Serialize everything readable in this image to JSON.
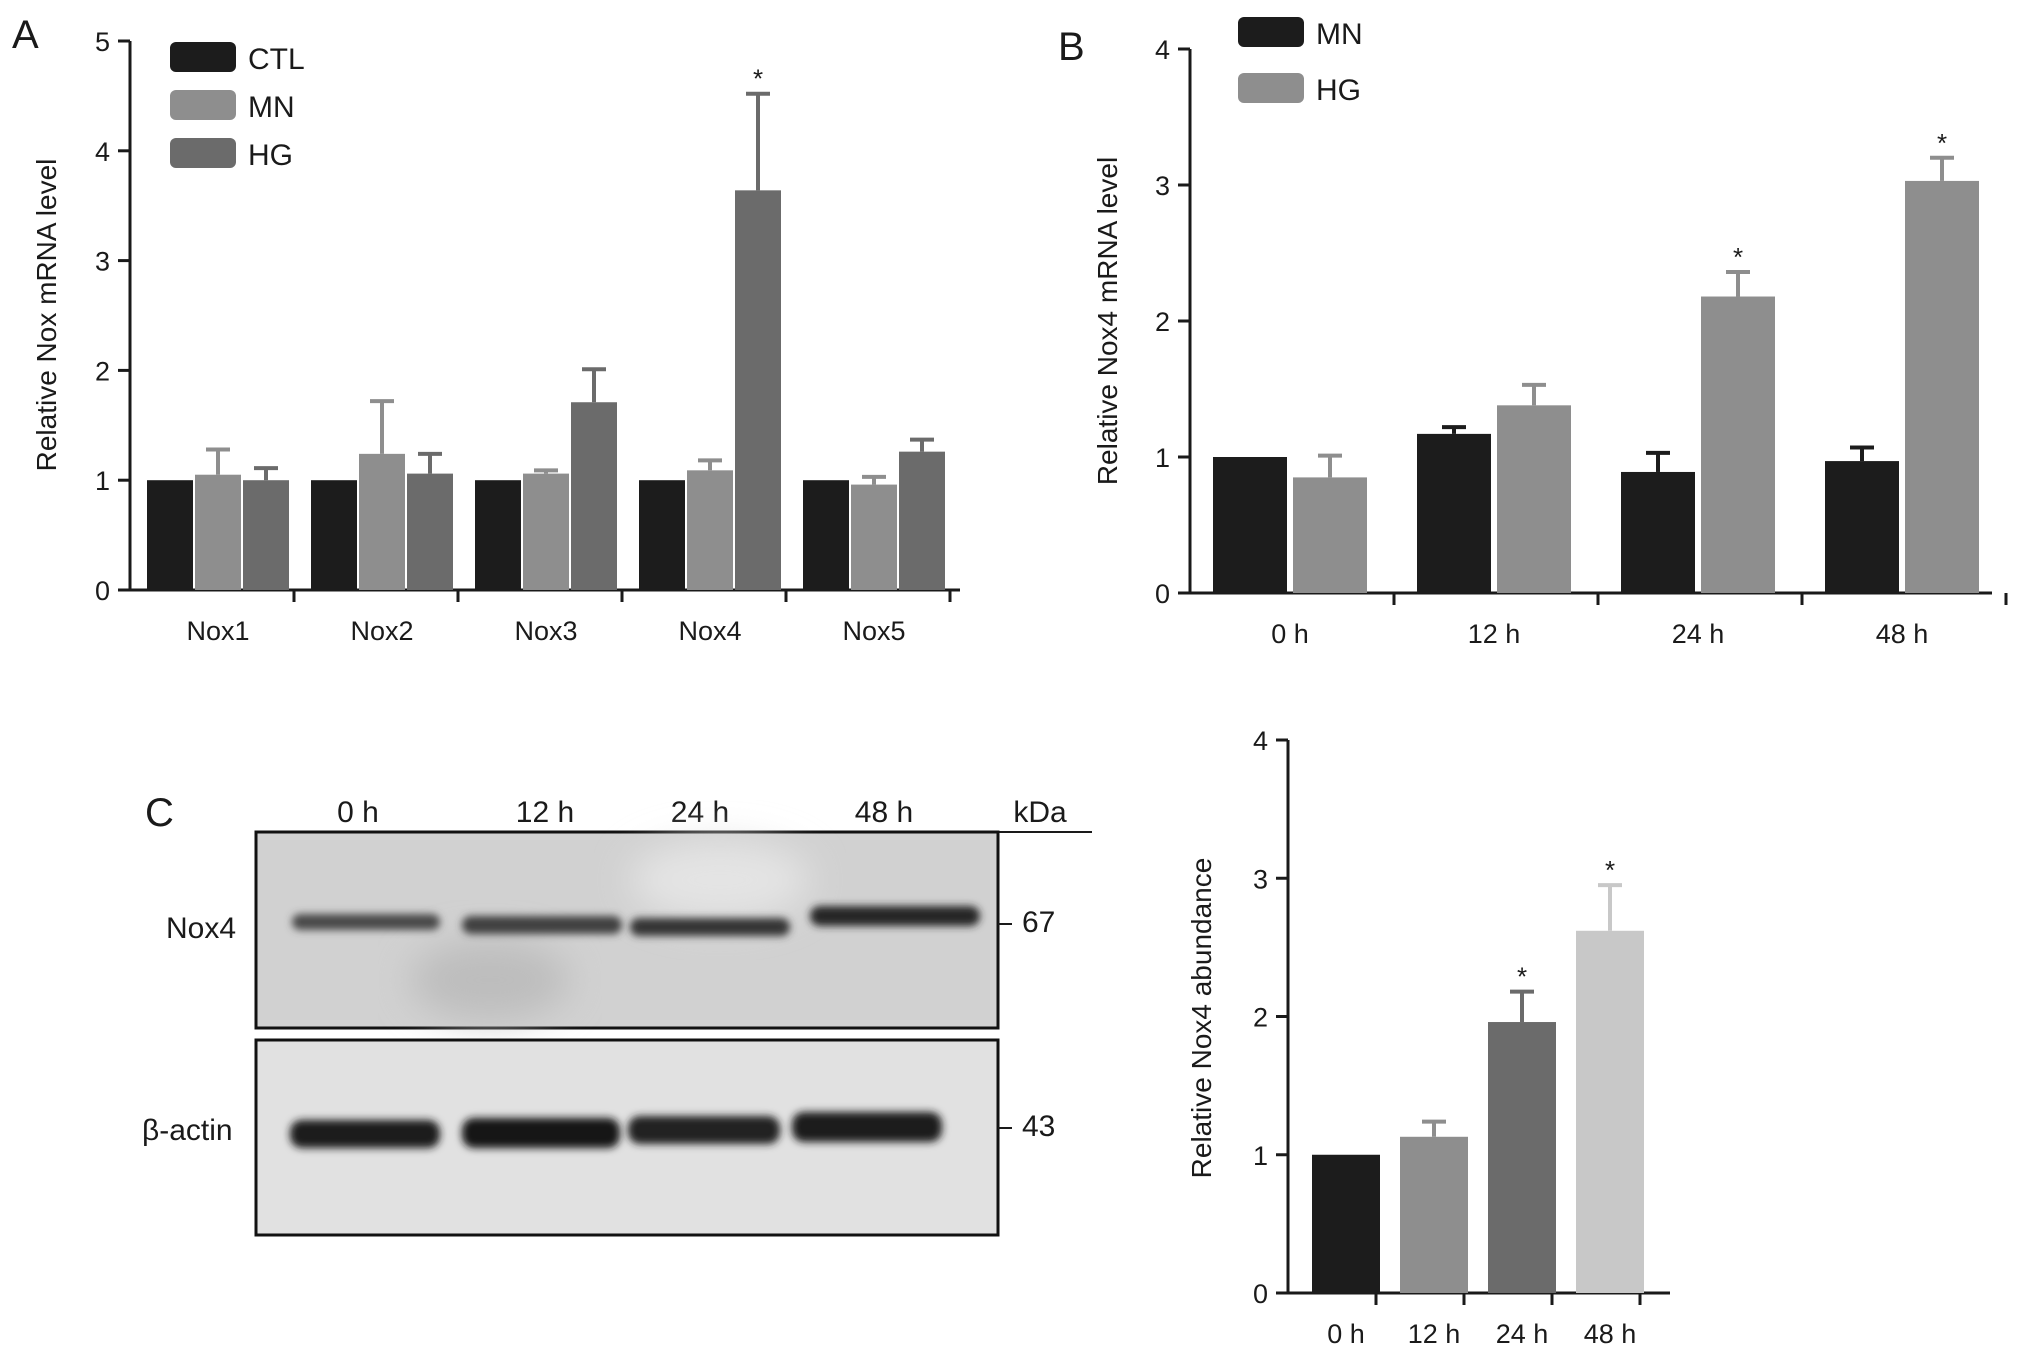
{
  "panels": {
    "a": {
      "letter": "A"
    },
    "b": {
      "letter": "B"
    },
    "c": {
      "letter": "C"
    }
  },
  "chart_data": [
    {
      "id": "a",
      "type": "bar",
      "ylabel": "Relative Nox mRNA level",
      "xlabel": "",
      "ylim": [
        0,
        5
      ],
      "yticks": [
        0,
        1,
        2,
        3,
        4,
        5
      ],
      "legend": "top-left",
      "categories": [
        "Nox1",
        "Nox2",
        "Nox3",
        "Nox4",
        "Nox5"
      ],
      "series": [
        {
          "name": "CTL",
          "color": "#1c1c1c",
          "values": [
            1.0,
            1.0,
            1.0,
            1.0,
            1.0
          ],
          "errors": [
            0,
            0,
            0,
            0,
            0
          ],
          "sig": [
            "",
            "",
            "",
            "",
            ""
          ]
        },
        {
          "name": "MN",
          "color": "#8e8e8e",
          "values": [
            1.05,
            1.24,
            1.06,
            1.09,
            0.96
          ],
          "errors": [
            0.23,
            0.48,
            0.03,
            0.09,
            0.07
          ],
          "sig": [
            "",
            "",
            "",
            "",
            ""
          ]
        },
        {
          "name": "HG",
          "color": "#6b6b6b",
          "values": [
            1.0,
            1.06,
            1.71,
            3.64,
            1.26
          ],
          "errors": [
            0.11,
            0.18,
            0.3,
            0.88,
            0.11
          ],
          "sig": [
            "",
            "",
            "",
            "*",
            ""
          ]
        }
      ]
    },
    {
      "id": "b",
      "type": "bar",
      "ylabel": "Relative Nox4 mRNA level",
      "xlabel": "",
      "ylim": [
        0,
        4
      ],
      "yticks": [
        0,
        1,
        2,
        3,
        4
      ],
      "legend": "top-left",
      "categories": [
        "0 h",
        "12 h",
        "24 h",
        "48 h"
      ],
      "series": [
        {
          "name": "MN",
          "color": "#1c1c1c",
          "values": [
            1.0,
            1.17,
            0.89,
            0.97
          ],
          "errors": [
            0,
            0.05,
            0.14,
            0.1
          ],
          "sig": [
            "",
            "",
            "",
            ""
          ]
        },
        {
          "name": "HG",
          "color": "#8e8e8e",
          "values": [
            0.85,
            1.38,
            2.18,
            3.03
          ],
          "errors": [
            0.16,
            0.15,
            0.18,
            0.17
          ],
          "sig": [
            "",
            "",
            "*",
            "*"
          ]
        }
      ]
    },
    {
      "id": "c",
      "type": "bar",
      "ylabel": "Relative Nox4 abundance",
      "xlabel": "",
      "ylim": [
        0,
        4
      ],
      "yticks": [
        0,
        1,
        2,
        3,
        4
      ],
      "categories": [
        "0 h",
        "12 h",
        "24 h",
        "48 h"
      ],
      "series": [
        {
          "name": "",
          "colors": [
            "#1c1c1c",
            "#8e8e8e",
            "#6b6b6b",
            "#c8c8c8"
          ],
          "values": [
            1.0,
            1.13,
            1.96,
            2.62
          ],
          "errors": [
            0,
            0.11,
            0.22,
            0.33
          ],
          "sig": [
            "",
            "",
            "*",
            "*"
          ]
        }
      ]
    }
  ],
  "blot": {
    "lanes": [
      "0 h",
      "12 h",
      "24 h",
      "48 h"
    ],
    "kda_label": "kDa",
    "rows": [
      {
        "label": "Nox4",
        "kda": "67"
      },
      {
        "label": "β-actin",
        "kda": "43"
      }
    ]
  }
}
